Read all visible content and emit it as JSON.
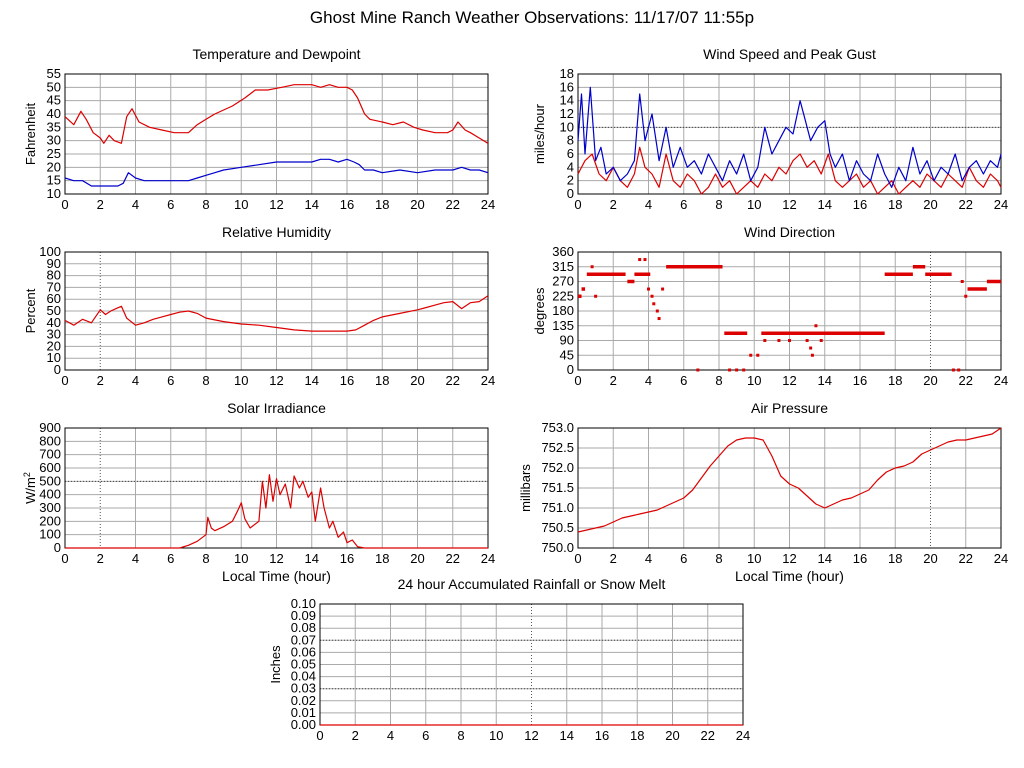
{
  "page": {
    "title": "Ghost Mine Ranch Weather Observations: 11/17/07 11:55p"
  },
  "chart_data": [
    {
      "id": "temp",
      "type": "line",
      "title": "Temperature and Dewpoint",
      "xlabel": "",
      "ylabel": "Fahrenheit",
      "xlim": [
        0,
        24
      ],
      "ylim": [
        10,
        55
      ],
      "xticks": [
        0,
        2,
        4,
        6,
        8,
        10,
        12,
        14,
        16,
        18,
        20,
        22,
        24
      ],
      "yticks": [
        10,
        15,
        20,
        25,
        30,
        35,
        40,
        45,
        50,
        55
      ],
      "colors": {
        "temperature": "#dd0000",
        "dewpoint": "#0000cc"
      },
      "series": [
        {
          "key": "temperature",
          "color": "#dd0000",
          "x": [
            0,
            0.5,
            0.9,
            1.2,
            1.6,
            2.0,
            2.2,
            2.5,
            2.8,
            3.2,
            3.5,
            3.8,
            4.2,
            4.8,
            5.5,
            6.2,
            7.0,
            7.5,
            8.0,
            8.5,
            9.5,
            10.2,
            10.8,
            11.5,
            12.3,
            13.0,
            13.6,
            14.0,
            14.5,
            15.0,
            15.5,
            16.0,
            16.3,
            16.6,
            17.0,
            17.3,
            18.0,
            18.6,
            19.2,
            19.8,
            20.3,
            21.0,
            21.7,
            22.0,
            22.3,
            22.7,
            23.0,
            23.5,
            24.0
          ],
          "y": [
            39,
            36,
            41,
            38,
            33,
            31,
            29,
            32,
            30,
            29,
            39,
            42,
            37,
            35,
            34,
            33,
            33,
            36,
            38,
            40,
            43,
            46,
            49,
            49,
            50,
            51,
            51,
            51,
            50,
            51,
            50,
            50,
            49,
            46,
            40,
            38,
            37,
            36,
            37,
            35,
            34,
            33,
            33,
            34,
            37,
            34,
            33,
            31,
            29
          ]
        },
        {
          "key": "dewpoint",
          "color": "#0000cc",
          "x": [
            0,
            0.5,
            1,
            1.5,
            2,
            2.5,
            3,
            3.3,
            3.6,
            4,
            4.5,
            5,
            6,
            7,
            7.5,
            8,
            8.5,
            9,
            10,
            11,
            12,
            13,
            14,
            14.5,
            15,
            15.5,
            16,
            16.4,
            16.7,
            17,
            17.5,
            18,
            19,
            20,
            21,
            22,
            22.5,
            23,
            23.5,
            24
          ],
          "y": [
            16,
            15,
            15,
            13,
            13,
            13,
            13,
            14,
            18,
            16,
            15,
            15,
            15,
            15,
            16,
            17,
            18,
            19,
            20,
            21,
            22,
            22,
            22,
            23,
            23,
            22,
            23,
            22,
            21,
            19,
            19,
            18,
            19,
            18,
            19,
            19,
            20,
            19,
            19,
            18
          ]
        }
      ]
    },
    {
      "id": "wind",
      "type": "line",
      "title": "Wind Speed and Peak Gust",
      "ylabel": "miles/hour",
      "xlim": [
        0,
        24
      ],
      "ylim": [
        0,
        18
      ],
      "xticks": [
        0,
        2,
        4,
        6,
        8,
        10,
        12,
        14,
        16,
        18,
        20,
        22,
        24
      ],
      "yticks": [
        0,
        2,
        4,
        6,
        8,
        10,
        12,
        14,
        16,
        18
      ],
      "series": [
        {
          "key": "speed",
          "color": "#dd0000",
          "x": [
            0,
            0.4,
            0.8,
            1.2,
            1.6,
            2,
            2.4,
            2.8,
            3.2,
            3.5,
            3.8,
            4.2,
            4.6,
            5,
            5.4,
            5.8,
            6.2,
            6.6,
            7,
            7.4,
            7.8,
            8.2,
            8.6,
            9,
            9.4,
            9.8,
            10.2,
            10.6,
            11,
            11.4,
            11.8,
            12.2,
            12.6,
            13,
            13.4,
            13.8,
            14.2,
            14.6,
            15,
            15.4,
            15.8,
            16.2,
            16.6,
            17,
            17.4,
            17.8,
            18.2,
            18.6,
            19,
            19.4,
            19.8,
            20.2,
            20.6,
            21,
            21.4,
            21.8,
            22.2,
            22.6,
            23,
            23.4,
            23.8,
            24
          ],
          "y": [
            3,
            5,
            6,
            3,
            2,
            4,
            2,
            1,
            3,
            7,
            4,
            3,
            1,
            6,
            2,
            1,
            3,
            2,
            0,
            1,
            3,
            1,
            2,
            0,
            1,
            2,
            1,
            3,
            2,
            4,
            3,
            5,
            6,
            4,
            5,
            3,
            6,
            2,
            1,
            2,
            3,
            1,
            2,
            0,
            1,
            2,
            0,
            1,
            2,
            1,
            3,
            2,
            1,
            3,
            2,
            1,
            4,
            2,
            1,
            3,
            2,
            1
          ]
        },
        {
          "key": "gust",
          "color": "#0000cc",
          "x": [
            0,
            0.2,
            0.4,
            0.7,
            1,
            1.3,
            1.6,
            2,
            2.4,
            2.8,
            3.2,
            3.5,
            3.8,
            4.2,
            4.6,
            5,
            5.4,
            5.8,
            6.2,
            6.6,
            7,
            7.4,
            7.8,
            8.2,
            8.6,
            9,
            9.4,
            9.8,
            10.2,
            10.6,
            11,
            11.4,
            11.8,
            12.2,
            12.6,
            12.9,
            13.2,
            13.6,
            14,
            14.3,
            14.6,
            15,
            15.4,
            15.8,
            16.2,
            16.6,
            17,
            17.4,
            17.8,
            18.2,
            18.6,
            19,
            19.4,
            19.8,
            20.2,
            20.6,
            21,
            21.4,
            21.8,
            22.2,
            22.6,
            23,
            23.4,
            23.8,
            24
          ],
          "y": [
            8,
            15,
            6,
            16,
            5,
            7,
            3,
            4,
            2,
            3,
            5,
            15,
            8,
            12,
            5,
            10,
            4,
            7,
            4,
            5,
            3,
            6,
            4,
            2,
            5,
            3,
            6,
            2,
            4,
            10,
            6,
            8,
            10,
            9,
            14,
            11,
            8,
            10,
            11,
            6,
            4,
            6,
            2,
            5,
            3,
            2,
            6,
            3,
            1,
            4,
            2,
            7,
            3,
            5,
            2,
            4,
            3,
            6,
            2,
            4,
            5,
            3,
            5,
            4,
            6
          ]
        }
      ]
    },
    {
      "id": "rh",
      "type": "line",
      "title": "Relative Humidity",
      "ylabel": "Percent",
      "xlim": [
        0,
        24
      ],
      "ylim": [
        0,
        100
      ],
      "xticks": [
        0,
        2,
        4,
        6,
        8,
        10,
        12,
        14,
        16,
        18,
        20,
        22,
        24
      ],
      "yticks": [
        0,
        10,
        20,
        30,
        40,
        50,
        60,
        70,
        80,
        90,
        100
      ],
      "series": [
        {
          "key": "rh",
          "color": "#dd0000",
          "x": [
            0,
            0.5,
            1,
            1.5,
            2,
            2.3,
            2.6,
            2.9,
            3.2,
            3.5,
            4,
            4.5,
            5,
            5.5,
            6,
            6.5,
            7,
            7.5,
            8,
            9,
            10,
            11,
            12,
            13,
            14,
            15,
            16,
            16.5,
            17,
            17.5,
            18,
            19,
            20,
            20.5,
            21,
            21.5,
            22,
            22.5,
            23,
            23.5,
            24
          ],
          "y": [
            42,
            38,
            43,
            40,
            51,
            47,
            50,
            52,
            54,
            44,
            38,
            40,
            43,
            45,
            47,
            49,
            50,
            48,
            44,
            41,
            39,
            38,
            36,
            34,
            33,
            33,
            33,
            34,
            38,
            42,
            45,
            48,
            51,
            53,
            55,
            57,
            58,
            52,
            57,
            58,
            63
          ]
        }
      ]
    },
    {
      "id": "wdir",
      "type": "scatter",
      "title": "Wind Direction",
      "ylabel": "degrees",
      "xlim": [
        0,
        24
      ],
      "ylim": [
        0,
        360
      ],
      "xticks": [
        0,
        2,
        4,
        6,
        8,
        10,
        12,
        14,
        16,
        18,
        20,
        22,
        24
      ],
      "yticks": [
        0,
        45,
        90,
        135,
        180,
        225,
        270,
        315,
        360
      ],
      "segments": [
        {
          "x0": 0.0,
          "x1": 0.2,
          "y": 225
        },
        {
          "x0": 0.2,
          "x1": 0.4,
          "y": 247
        },
        {
          "x0": 0.5,
          "x1": 2.7,
          "y": 292
        },
        {
          "x0": 2.8,
          "x1": 3.2,
          "y": 270
        },
        {
          "x0": 3.2,
          "x1": 4.1,
          "y": 292
        },
        {
          "x0": 5.0,
          "x1": 8.2,
          "y": 315
        },
        {
          "x0": 8.3,
          "x1": 9.6,
          "y": 112
        },
        {
          "x0": 10.4,
          "x1": 17.4,
          "y": 112
        },
        {
          "x0": 17.4,
          "x1": 19.0,
          "y": 292
        },
        {
          "x0": 19.0,
          "x1": 19.7,
          "y": 315
        },
        {
          "x0": 19.7,
          "x1": 21.2,
          "y": 292
        },
        {
          "x0": 22.1,
          "x1": 23.2,
          "y": 247
        },
        {
          "x0": 23.2,
          "x1": 24.0,
          "y": 270
        }
      ],
      "points": [
        [
          0.8,
          315
        ],
        [
          1.0,
          225
        ],
        [
          2.0,
          292
        ],
        [
          3.0,
          270
        ],
        [
          3.5,
          337
        ],
        [
          3.8,
          337
        ],
        [
          4.0,
          247
        ],
        [
          4.2,
          225
        ],
        [
          4.3,
          202
        ],
        [
          4.5,
          180
        ],
        [
          4.6,
          157
        ],
        [
          4.8,
          247
        ],
        [
          6.8,
          0
        ],
        [
          8.6,
          0
        ],
        [
          9.0,
          0
        ],
        [
          9.4,
          0
        ],
        [
          9.8,
          45
        ],
        [
          10.2,
          45
        ],
        [
          10.6,
          90
        ],
        [
          11.4,
          90
        ],
        [
          12.0,
          90
        ],
        [
          12.4,
          112
        ],
        [
          13.0,
          90
        ],
        [
          13.2,
          67
        ],
        [
          13.3,
          45
        ],
        [
          13.5,
          135
        ],
        [
          13.6,
          112
        ],
        [
          13.8,
          90
        ],
        [
          21.3,
          0
        ],
        [
          21.6,
          0
        ],
        [
          21.8,
          270
        ],
        [
          22.0,
          225
        ],
        [
          14.2,
          112
        ],
        [
          15.0,
          112
        ]
      ]
    },
    {
      "id": "solar",
      "type": "line",
      "title": "Solar Irradiance",
      "xlabel": "Local Time (hour)",
      "ylabel": "W/m",
      "ylabel_sup": "2",
      "xlim": [
        0,
        24
      ],
      "ylim": [
        0,
        900
      ],
      "xticks": [
        0,
        2,
        4,
        6,
        8,
        10,
        12,
        14,
        16,
        18,
        20,
        22,
        24
      ],
      "yticks": [
        0,
        100,
        200,
        300,
        400,
        500,
        600,
        700,
        800,
        900
      ],
      "series": [
        {
          "key": "solar",
          "color": "#dd0000",
          "x": [
            0,
            6.5,
            7,
            7.5,
            8,
            8.1,
            8.3,
            8.5,
            9,
            9.5,
            9.8,
            10,
            10.2,
            10.5,
            11,
            11.2,
            11.4,
            11.6,
            11.8,
            12,
            12.2,
            12.5,
            12.8,
            13,
            13.3,
            13.5,
            13.8,
            14,
            14.2,
            14.5,
            14.7,
            15,
            15.2,
            15.5,
            15.8,
            16,
            16.3,
            16.6,
            17,
            24
          ],
          "y": [
            0,
            0,
            20,
            50,
            100,
            230,
            150,
            130,
            160,
            200,
            280,
            340,
            220,
            150,
            200,
            500,
            300,
            550,
            350,
            520,
            400,
            480,
            300,
            540,
            450,
            500,
            380,
            420,
            200,
            450,
            300,
            150,
            200,
            80,
            120,
            40,
            60,
            10,
            0,
            0
          ]
        }
      ]
    },
    {
      "id": "pressure",
      "type": "line",
      "title": "Air Pressure",
      "xlabel": "Local Time (hour)",
      "ylabel": "millibars",
      "xlim": [
        0,
        24
      ],
      "ylim": [
        750.0,
        753.0
      ],
      "xticks": [
        0,
        2,
        4,
        6,
        8,
        10,
        12,
        14,
        16,
        18,
        20,
        22,
        24
      ],
      "yticks": [
        "750.0",
        "750.5",
        "751.0",
        "751.5",
        "752.0",
        "752.5",
        "753.0"
      ],
      "series": [
        {
          "key": "pressure",
          "color": "#dd0000",
          "x": [
            0,
            0.5,
            1,
            1.5,
            2,
            2.5,
            3,
            3.5,
            4,
            4.5,
            5,
            5.5,
            6,
            6.5,
            7,
            7.5,
            8,
            8.5,
            9,
            9.5,
            10,
            10.5,
            11,
            11.5,
            12,
            12.5,
            13,
            13.5,
            14,
            14.5,
            15,
            15.5,
            16,
            16.5,
            17,
            17.5,
            18,
            18.5,
            19,
            19.5,
            20,
            20.5,
            21,
            21.5,
            22,
            22.5,
            23,
            23.5,
            24
          ],
          "y": [
            750.4,
            750.45,
            750.5,
            750.55,
            750.65,
            750.75,
            750.8,
            750.85,
            750.9,
            750.95,
            751.05,
            751.15,
            751.25,
            751.45,
            751.75,
            752.05,
            752.3,
            752.55,
            752.7,
            752.75,
            752.75,
            752.7,
            752.3,
            751.8,
            751.6,
            751.5,
            751.3,
            751.1,
            751.0,
            751.1,
            751.2,
            751.25,
            751.35,
            751.45,
            751.7,
            751.9,
            752.0,
            752.05,
            752.15,
            752.35,
            752.45,
            752.55,
            752.65,
            752.7,
            752.7,
            752.75,
            752.8,
            752.85,
            753.0
          ]
        }
      ]
    },
    {
      "id": "rain",
      "type": "line",
      "title": "24 hour Accumulated Rainfall or Snow Melt",
      "ylabel": "Inches",
      "xlim": [
        0,
        24
      ],
      "ylim": [
        0.0,
        0.1
      ],
      "xticks": [
        0,
        2,
        4,
        6,
        8,
        10,
        12,
        14,
        16,
        18,
        20,
        22,
        24
      ],
      "yticks": [
        "0.00",
        "0.01",
        "0.02",
        "0.03",
        "0.04",
        "0.05",
        "0.06",
        "0.07",
        "0.08",
        "0.09",
        "0.10"
      ],
      "series": [
        {
          "key": "rain",
          "color": "#dd0000",
          "x": [
            0,
            24
          ],
          "y": [
            0,
            0
          ]
        }
      ]
    }
  ]
}
